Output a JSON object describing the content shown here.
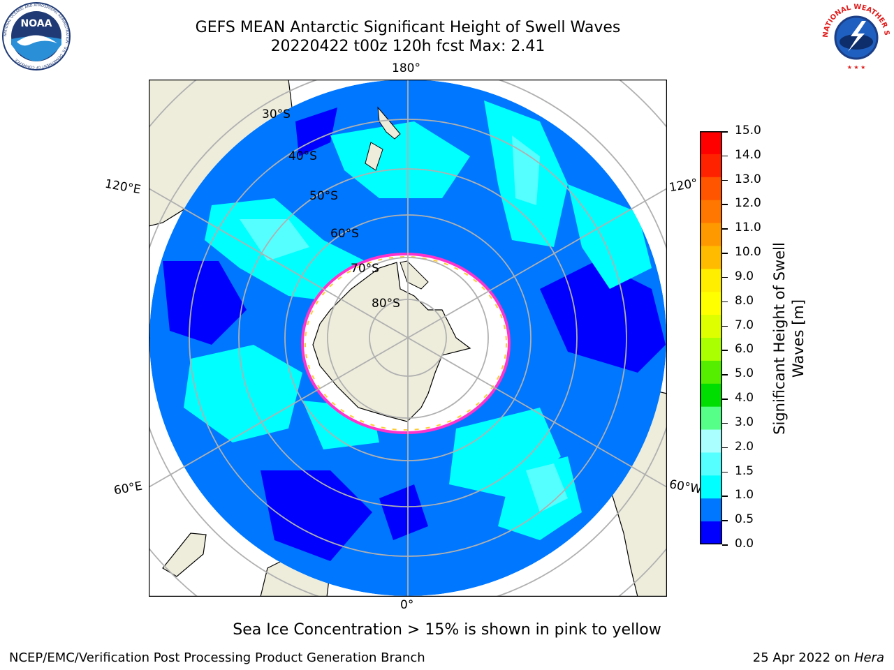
{
  "header": {
    "title_line1": "GEFS MEAN Antarctic Significant Height of Swell Waves",
    "title_line2": "20220422 t00z 120h fcst   Max: 2.41"
  },
  "logos": {
    "left": "NOAA",
    "left_ring_text": "NATIONAL OCEANIC AND ATMOSPHERIC ADMINISTRATION · U.S. DEPARTMENT OF COMMERCE",
    "right_ring_text": "NATIONAL WEATHER SERVICE"
  },
  "map": {
    "projection": "south polar stereographic",
    "longitude_labels": [
      "180°",
      "120°E",
      "120°",
      "60°E",
      "60°W",
      "0°"
    ],
    "latitude_labels": [
      "30°S",
      "40°S",
      "50°S",
      "60°S",
      "70°S",
      "80°S"
    ],
    "colors": {
      "land": "#eeeddc",
      "sea_ice": "#ffffff",
      "ice_edge": "#ff33cc",
      "gridline": "#b0b0b0"
    }
  },
  "colorbar": {
    "label_line1": "Significant Height of Swell",
    "label_line2": "Waves [m]",
    "ticks": [
      "15.0",
      "14.0",
      "13.0",
      "12.0",
      "11.0",
      "10.0",
      "9.0",
      "8.0",
      "7.0",
      "6.0",
      "5.0",
      "4.0",
      "3.0",
      "2.0",
      "1.5",
      "1.0",
      "0.5",
      "0.0"
    ],
    "colors_top_to_bottom": [
      "#ff0000",
      "#ff2200",
      "#ff5500",
      "#ff7700",
      "#ff9900",
      "#ffbb00",
      "#ffee00",
      "#ffff00",
      "#ddff00",
      "#aaff00",
      "#55ee00",
      "#00dd00",
      "#55ff88",
      "#aaffff",
      "#55ffff",
      "#00ffff",
      "#0077ff",
      "#0000ff"
    ]
  },
  "footer": {
    "note": "Sea Ice Concentration > 15% is shown in pink to yellow",
    "credit_left": "NCEP/EMC/Verification Post Processing Product Generation Branch",
    "credit_date": "25 Apr 2022 on ",
    "credit_machine": "Hera"
  }
}
